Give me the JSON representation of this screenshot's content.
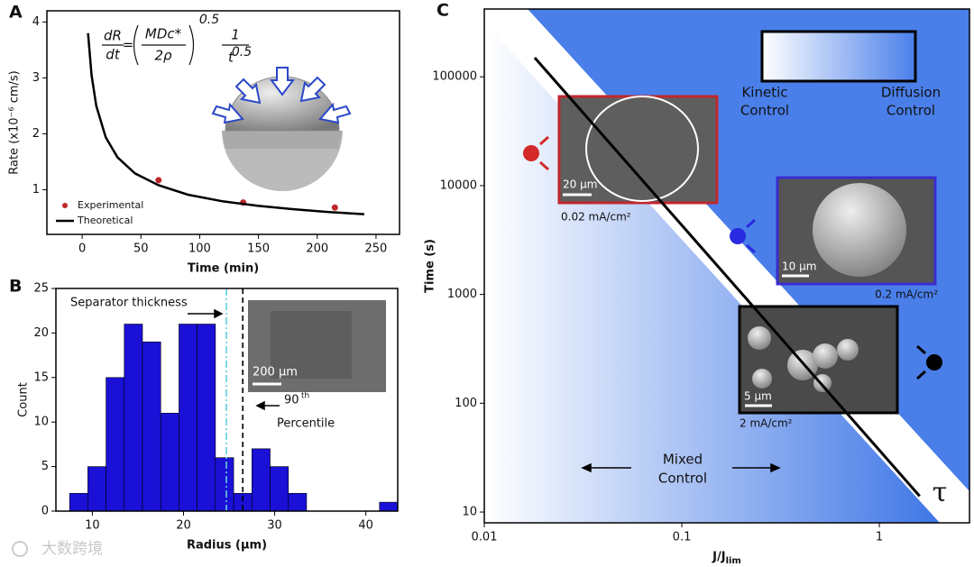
{
  "chart_data": [
    {
      "type": "line",
      "panel": "A",
      "x_label": "Time (min)",
      "y_label": "Rate (x10⁻⁶ cm/s)",
      "equation": {
        "numerator": "dR",
        "denominator": "dt",
        "equals": "=",
        "inner_numerator": "MDc*",
        "inner_denominator": "2ρ",
        "exponent": "0.5",
        "rhs_numerator": "1",
        "rhs_base": "t",
        "rhs_exponent": "0.5"
      },
      "xlim": [
        -30,
        270
      ],
      "xticks": [
        0,
        50,
        100,
        150,
        200,
        250
      ],
      "ylim": [
        0.2,
        4.2
      ],
      "yticks": [
        1,
        2,
        3,
        4
      ],
      "legend": "lower left",
      "series": [
        {
          "name": "Experimental",
          "color": "#c0272d",
          "style": "markers",
          "x": [
            65,
            137,
            215
          ],
          "values": [
            1.17,
            0.77,
            0.68
          ]
        },
        {
          "name": "Theoretical",
          "color": "#000000",
          "style": "line",
          "x": [
            5,
            8,
            12,
            20,
            30,
            45,
            65,
            90,
            120,
            150,
            180,
            210,
            240
          ],
          "values": [
            3.8,
            3.05,
            2.5,
            1.94,
            1.58,
            1.29,
            1.08,
            0.91,
            0.79,
            0.71,
            0.65,
            0.6,
            0.56
          ]
        }
      ]
    },
    {
      "type": "histogram",
      "panel": "B",
      "x_label": "Radius (μm)",
      "y_label": "Count",
      "color": "#1a10d6",
      "bins": [
        7.5,
        9.5,
        11.5,
        13.5,
        15.5,
        17.5,
        19.5,
        21.5,
        23.5,
        25.5,
        27.5,
        29.5,
        31.5,
        33.5,
        35.5,
        37.5,
        39.5,
        41.5,
        43.5
      ],
      "counts": [
        2,
        5,
        15,
        21,
        19,
        11,
        21,
        21,
        6,
        2,
        7,
        5,
        2,
        0,
        0,
        0,
        0,
        1
      ],
      "xlim": [
        6,
        43.5
      ],
      "xticks": [
        10,
        20,
        30,
        40
      ],
      "ylim": [
        0,
        25
      ],
      "yticks": [
        0,
        5,
        10,
        15,
        20,
        25
      ],
      "vlines": [
        {
          "value": 24.7,
          "color": "#5fd0dc",
          "style": "dashdot"
        },
        {
          "value": 26.5,
          "color": "#000000",
          "style": "dashed"
        }
      ],
      "annotations": [
        "Separator thickness",
        "90",
        "th",
        "Percentile",
        "200 μm"
      ]
    },
    {
      "type": "line",
      "panel": "C",
      "xscale": "log",
      "yscale": "log",
      "x_label": "J/J",
      "x_label_sub": "lim",
      "y_label": "Time (s)",
      "xlim": [
        0.01,
        2.86
      ],
      "xticks": [
        0.01,
        0.1,
        1
      ],
      "ylim": [
        7.96,
        420000
      ],
      "yticks": [
        10,
        100,
        1000,
        10000,
        100000
      ],
      "series": [
        {
          "name": "τ",
          "color": "#000000",
          "style": "line",
          "x": [
            0.018,
            1.6
          ],
          "values": [
            150000,
            14
          ]
        }
      ],
      "annotations": [
        "Kinetic",
        "Control",
        "Diffusion",
        "Control",
        "Mixed",
        "Control",
        "20 μm",
        "0.02 mA/cm²",
        "10 μm",
        "0.2 mA/cm²",
        "5 μm",
        "2 mA/cm²"
      ]
    }
  ],
  "watermark": "大数跨境"
}
